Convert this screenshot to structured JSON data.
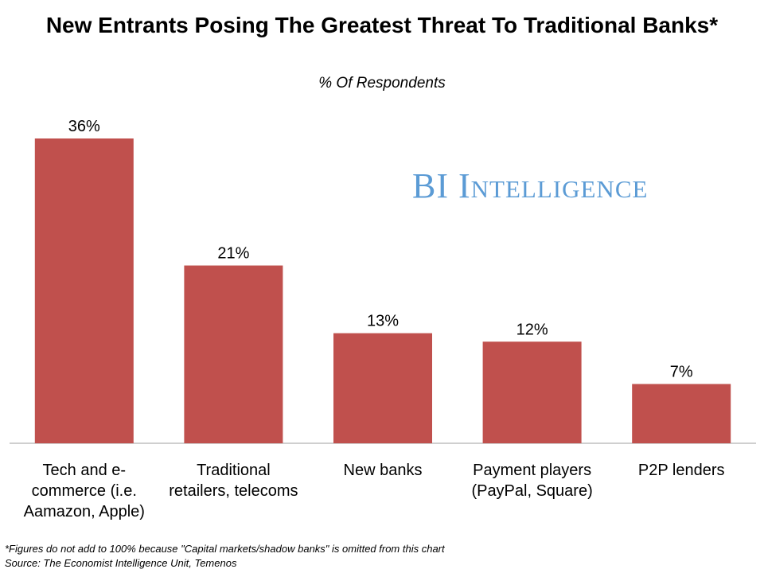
{
  "chart_data": {
    "type": "bar",
    "title": "New Entrants Posing The Greatest Threat To Traditional Banks*",
    "subtitle": "% Of Respondents",
    "categories": [
      "Tech and e-\ncommerce (i.e.\nAamazon, Apple)",
      "Traditional\nretailers, telecoms",
      "New banks",
      "Payment players\n(PayPal, Square)",
      "P2P lenders"
    ],
    "values": [
      36,
      21,
      13,
      12,
      7
    ],
    "value_labels": [
      "36%",
      "21%",
      "13%",
      "12%",
      "7%"
    ],
    "ylim": [
      0,
      36
    ],
    "grid": false,
    "bar_color": "#c0504d",
    "axis_color": "#bfbfbf"
  },
  "watermark": "BI Intelligence",
  "footnote": "*Figures do not add to 100% because \"Capital markets/shadow banks\" is omitted from this chart",
  "source": "Source: The Economist Intelligence Unit, Temenos",
  "colors": {
    "watermark": "#5b9bd5"
  }
}
